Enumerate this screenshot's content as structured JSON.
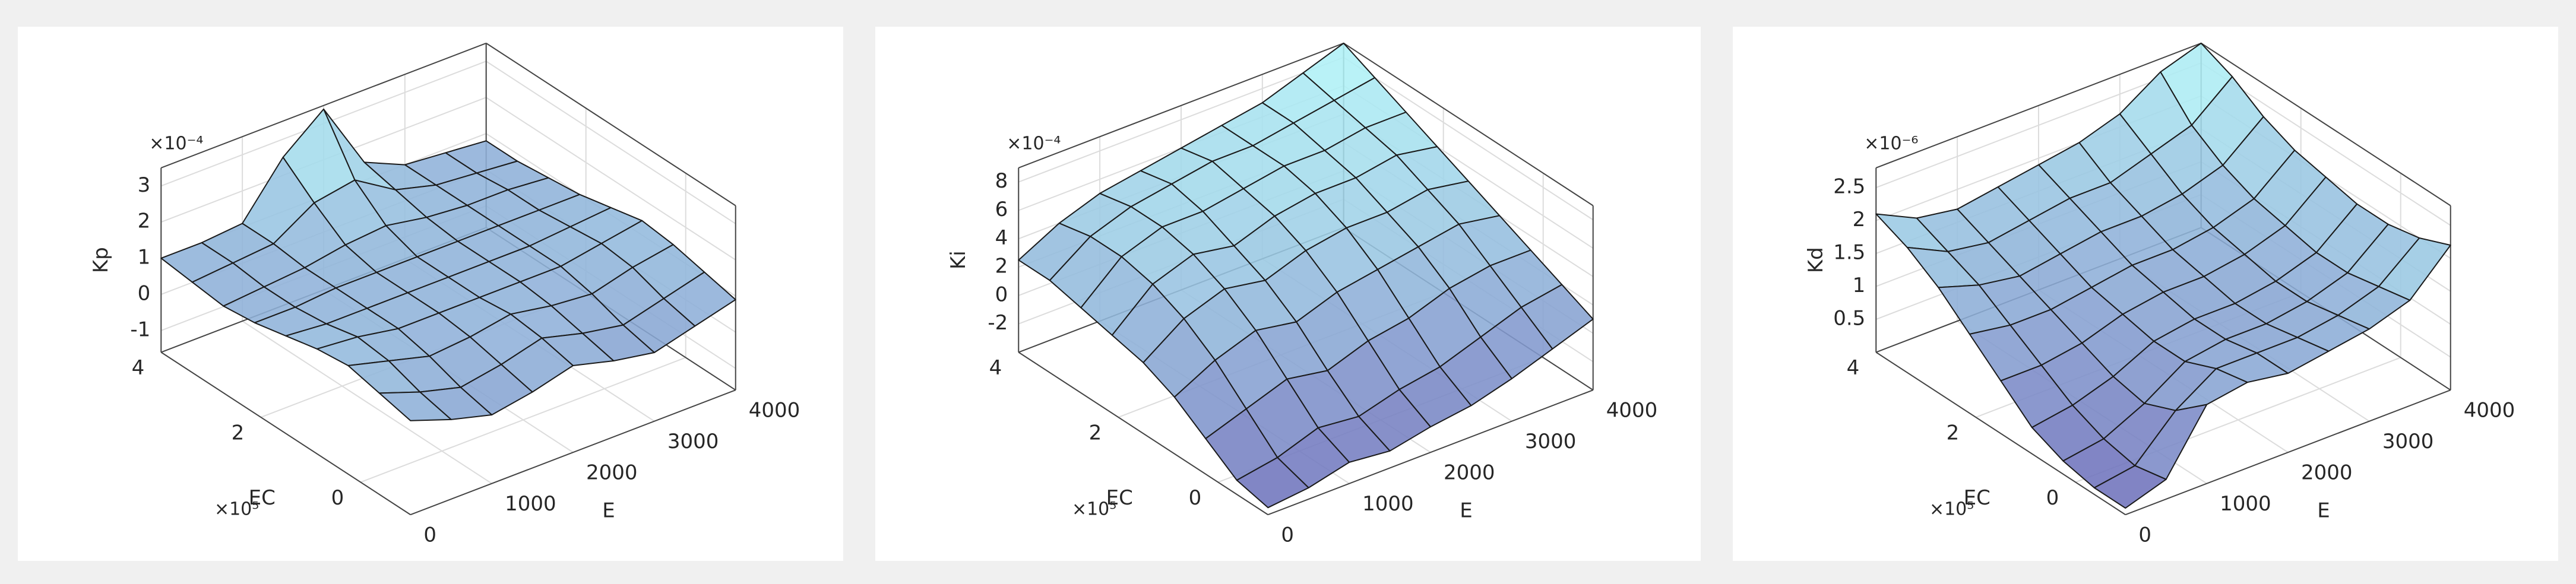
{
  "chart_data": [
    {
      "type": "surface",
      "xlabel": "E",
      "ylabel": "EC",
      "zlabel": "Kp",
      "y_multiplier": "×10⁵",
      "z_multiplier": "×10⁻⁴",
      "x": [
        0,
        500,
        1000,
        1500,
        2000,
        2500,
        3000,
        3500,
        4000
      ],
      "y": [
        -1,
        -0.375,
        0.25,
        0.875,
        1.5,
        2.125,
        2.75,
        3.375,
        4
      ],
      "z": [
        [
          1.0,
          0.6,
          0.3,
          0.5,
          0.8,
          0.5,
          0.3,
          0.6,
          0.9
        ],
        [
          1.2,
          0.8,
          0.5,
          0.7,
          1.0,
          0.7,
          0.5,
          0.8,
          1.1
        ],
        [
          1.4,
          1.1,
          0.8,
          0.9,
          1.1,
          0.9,
          0.8,
          1.1,
          1.3
        ],
        [
          1.3,
          1.2,
          1.0,
          1.0,
          1.0,
          1.0,
          1.0,
          1.2,
          1.4
        ],
        [
          1.1,
          1.0,
          1.0,
          1.0,
          1.0,
          1.0,
          1.0,
          1.1,
          1.2
        ],
        [
          0.9,
          0.9,
          1.0,
          1.0,
          1.0,
          1.0,
          1.0,
          1.0,
          1.0
        ],
        [
          0.8,
          0.9,
          1.0,
          1.2,
          1.3,
          1.1,
          1.0,
          1.0,
          0.9
        ],
        [
          0.9,
          1.0,
          1.1,
          1.8,
          2.0,
          1.3,
          1.0,
          0.9,
          0.8
        ],
        [
          1.0,
          1.0,
          1.1,
          2.5,
          3.4,
          1.5,
          1.0,
          0.9,
          0.8
        ]
      ],
      "xlim": [
        0,
        4000
      ],
      "ylim": [
        -1,
        4
      ],
      "zlim": [
        -1.6,
        3.5
      ],
      "xticks": [
        0,
        1000,
        2000,
        3000,
        4000
      ],
      "yticks": [
        0,
        2,
        4
      ],
      "zticks": [
        -1,
        0,
        1,
        2,
        3
      ],
      "colormap": [
        "#6a6ab8",
        "#b4fafa"
      ],
      "edge_color": "#1a1a1a",
      "grid": true
    },
    {
      "type": "surface",
      "xlabel": "E",
      "ylabel": "EC",
      "zlabel": "Ki",
      "y_multiplier": "×10⁵",
      "z_multiplier": "×10⁻⁴",
      "x": [
        0,
        500,
        1000,
        1500,
        2000,
        2500,
        3000,
        3500,
        4000
      ],
      "y": [
        -1,
        -0.375,
        0.25,
        0.875,
        1.5,
        2.125,
        2.75,
        3.375,
        4
      ],
      "z": [
        [
          -3.5,
          -3.2,
          -2.5,
          -2.8,
          -2.2,
          -1.8,
          -1.0,
          0.0,
          1.0
        ],
        [
          -3.0,
          -2.5,
          -1.5,
          -1.8,
          -1.0,
          -0.5,
          0.5,
          1.5,
          2.0
        ],
        [
          -1.5,
          -0.5,
          0.5,
          0.0,
          1.0,
          1.5,
          2.5,
          3.0,
          3.0
        ],
        [
          0.0,
          1.5,
          2.5,
          2.0,
          3.0,
          3.5,
          4.0,
          4.5,
          4.0
        ],
        [
          1.0,
          3.0,
          4.0,
          3.5,
          4.5,
          5.0,
          5.0,
          5.5,
          5.0
        ],
        [
          1.5,
          4.0,
          5.0,
          4.5,
          5.5,
          6.0,
          6.0,
          6.5,
          6.0
        ],
        [
          2.0,
          4.5,
          5.5,
          5.5,
          6.0,
          6.5,
          6.5,
          7.0,
          7.0
        ],
        [
          2.5,
          4.5,
          5.5,
          6.0,
          6.5,
          6.5,
          7.0,
          7.5,
          8.0
        ],
        [
          2.5,
          4.0,
          5.0,
          5.5,
          6.0,
          6.5,
          7.0,
          8.0,
          9.0
        ]
      ],
      "xlim": [
        0,
        4000
      ],
      "ylim": [
        -1,
        4
      ],
      "zlim": [
        -4,
        9
      ],
      "xticks": [
        0,
        1000,
        2000,
        3000,
        4000
      ],
      "yticks": [
        0,
        2,
        4
      ],
      "zticks": [
        -2,
        0,
        2,
        4,
        6,
        8
      ],
      "colormap": [
        "#6a6ab8",
        "#b4fafa"
      ],
      "edge_color": "#1a1a1a",
      "grid": true
    },
    {
      "type": "surface",
      "xlabel": "E",
      "ylabel": "EC",
      "zlabel": "Kd",
      "y_multiplier": "×10⁵",
      "z_multiplier": "×10⁻⁶",
      "x": [
        0,
        500,
        1000,
        1500,
        2000,
        2500,
        3000,
        3500,
        4000
      ],
      "y": [
        -1,
        -0.375,
        0.25,
        0.875,
        1.5,
        2.125,
        2.75,
        3.375,
        4
      ],
      "z": [
        [
          0.1,
          0.3,
          1.2,
          1.3,
          1.2,
          1.3,
          1.4,
          1.6,
          2.2
        ],
        [
          0.1,
          0.2,
          0.8,
          1.2,
          1.2,
          1.2,
          1.3,
          1.5,
          2.0
        ],
        [
          0.2,
          0.3,
          0.6,
          1.0,
          1.1,
          1.1,
          1.2,
          1.4,
          1.9
        ],
        [
          0.4,
          0.5,
          0.7,
          1.0,
          1.1,
          1.1,
          1.2,
          1.4,
          1.9
        ],
        [
          0.8,
          0.8,
          0.9,
          1.1,
          1.2,
          1.2,
          1.3,
          1.5,
          2.0
        ],
        [
          1.2,
          1.1,
          1.1,
          1.2,
          1.3,
          1.3,
          1.4,
          1.6,
          2.1
        ],
        [
          1.6,
          1.4,
          1.3,
          1.4,
          1.5,
          1.5,
          1.6,
          1.8,
          2.3
        ],
        [
          1.9,
          1.6,
          1.5,
          1.6,
          1.7,
          1.7,
          1.9,
          2.1,
          2.6
        ],
        [
          2.1,
          1.8,
          1.7,
          1.8,
          1.9,
          2.0,
          2.2,
          2.6,
          2.8
        ]
      ],
      "xlim": [
        0,
        4000
      ],
      "ylim": [
        -1,
        4
      ],
      "zlim": [
        0,
        2.8
      ],
      "xticks": [
        0,
        1000,
        2000,
        3000,
        4000
      ],
      "yticks": [
        0,
        2,
        4
      ],
      "zticks": [
        0.5,
        1,
        1.5,
        2,
        2.5
      ],
      "colormap": [
        "#6a6ab8",
        "#b4fafa"
      ],
      "edge_color": "#1a1a1a",
      "grid": true
    }
  ]
}
